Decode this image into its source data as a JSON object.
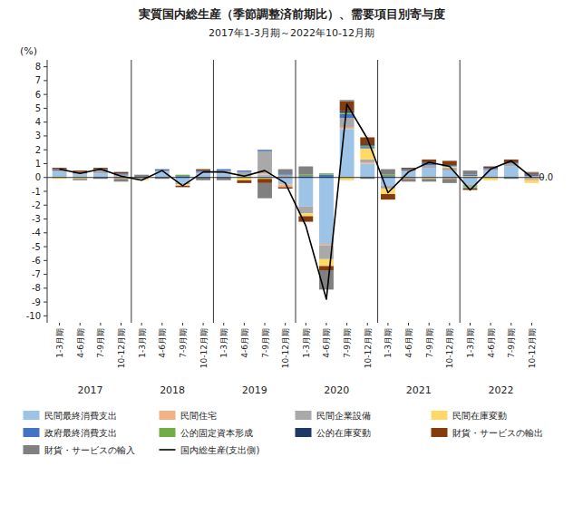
{
  "chart_data": {
    "type": "bar",
    "stacked": true,
    "grid": false,
    "legend": "bottom",
    "title": "実質国内総生産（季節調整済前期比）、需要項目別寄与度",
    "subtitle": "2017年1-3月期～2022年10-12月期",
    "ylabel": "(%)",
    "ylim": [
      -10.5,
      8.5
    ],
    "yticks": [
      -10,
      -9,
      -8,
      -7,
      -6,
      -5,
      -4,
      -3,
      -2,
      -1,
      0,
      1,
      2,
      3,
      4,
      5,
      6,
      7,
      8
    ],
    "categories": [
      "1-3月期",
      "4-6月期",
      "7-9月期",
      "10-12月期",
      "1-3月期",
      "4-6月期",
      "7-9月期",
      "10-12月期",
      "1-3月期",
      "4-6月期",
      "7-9月期",
      "10-12月期",
      "1-3月期",
      "4-6月期",
      "7-9月期",
      "10-12月期",
      "1-3月期",
      "4-6月期",
      "7-9月期",
      "10-12月期",
      "1-3月期",
      "4-6月期",
      "7-9月期",
      "10-12月期"
    ],
    "annotations": [
      {
        "text": "2017",
        "x": 1.5
      },
      {
        "text": "2018",
        "x": 5.5
      },
      {
        "text": "2019",
        "x": 9.5
      },
      {
        "text": "2020",
        "x": 13.5
      },
      {
        "text": "2021",
        "x": 17.5
      },
      {
        "text": "2022",
        "x": 21.5
      }
    ],
    "series": [
      {
        "name": "民間最終消費支出",
        "color": "#9DC3E6",
        "values": [
          0.4,
          0.2,
          0.3,
          0.1,
          -0.1,
          0.4,
          -0.4,
          0.3,
          0.3,
          0.1,
          0.2,
          -0.5,
          -2.1,
          -4.8,
          3.5,
          1.0,
          -0.6,
          0.4,
          0.7,
          0.5,
          -0.5,
          0.5,
          0.8,
          0.1
        ]
      },
      {
        "name": "民間住宅",
        "color": "#F4B183",
        "values": [
          0.0,
          0.0,
          0.0,
          -0.1,
          0.0,
          0.0,
          0.0,
          0.0,
          0.0,
          0.0,
          0.1,
          -0.2,
          0.0,
          -0.1,
          0.1,
          0.1,
          0.0,
          -0.1,
          0.0,
          -0.1,
          0.0,
          0.0,
          0.0,
          -0.1
        ]
      },
      {
        "name": "民間企業設備",
        "color": "#A9A9A9",
        "values": [
          0.1,
          0.1,
          0.2,
          0.1,
          0.0,
          0.1,
          -0.1,
          0.1,
          0.2,
          0.3,
          1.6,
          0.2,
          -0.5,
          -1.0,
          0.7,
          0.2,
          -0.2,
          0.1,
          0.2,
          0.2,
          -0.2,
          0.1,
          0.2,
          -0.1
        ]
      },
      {
        "name": "民間在庫変動",
        "color": "#FFD966",
        "values": [
          -0.1,
          -0.1,
          0.0,
          0.0,
          -0.1,
          0.0,
          -0.1,
          0.0,
          0.0,
          -0.2,
          -0.1,
          0.0,
          -0.2,
          -0.5,
          -0.2,
          0.8,
          -0.4,
          0.0,
          -0.1,
          0.1,
          0.1,
          -0.2,
          0.0,
          -0.2
        ]
      },
      {
        "name": "政府最終消費支出",
        "color": "#4472C4",
        "values": [
          0.1,
          0.1,
          0.1,
          0.1,
          0.0,
          0.1,
          0.1,
          0.1,
          0.1,
          0.1,
          0.1,
          0.1,
          0.1,
          0.2,
          0.3,
          0.1,
          0.1,
          0.1,
          0.2,
          0.1,
          0.1,
          0.1,
          0.1,
          0.1
        ]
      },
      {
        "name": "公的固定資本形成",
        "color": "#70AD47",
        "values": [
          0.0,
          0.0,
          0.0,
          0.0,
          0.0,
          0.0,
          0.1,
          0.0,
          0.0,
          0.0,
          0.0,
          0.0,
          0.1,
          0.1,
          0.1,
          0.1,
          0.1,
          0.0,
          0.0,
          0.0,
          -0.1,
          0.0,
          0.0,
          0.0
        ]
      },
      {
        "name": "公的在庫変動",
        "color": "#203864",
        "values": [
          0.0,
          0.0,
          0.0,
          0.0,
          0.0,
          0.0,
          0.0,
          0.0,
          0.0,
          0.0,
          0.0,
          0.0,
          0.0,
          0.0,
          0.1,
          0.1,
          0.0,
          0.0,
          0.0,
          0.0,
          0.0,
          0.0,
          0.0,
          0.0
        ]
      },
      {
        "name": "財貨・サービスの輸出",
        "color": "#843C0C",
        "values": [
          0.1,
          0.1,
          0.1,
          0.1,
          0.0,
          0.0,
          -0.1,
          0.1,
          0.0,
          -0.2,
          -0.3,
          -0.1,
          -0.4,
          -0.3,
          0.7,
          0.5,
          -0.4,
          0.1,
          0.2,
          0.3,
          -0.1,
          0.1,
          0.2,
          0.1
        ]
      },
      {
        "name": "財貨・サービスの輸入",
        "color": "#808080",
        "values": [
          0.0,
          -0.1,
          -0.1,
          -0.2,
          0.2,
          -0.1,
          0.0,
          -0.2,
          -0.2,
          0.0,
          -1.1,
          0.3,
          0.6,
          -1.4,
          0.1,
          -0.1,
          0.4,
          -0.2,
          -0.2,
          -0.3,
          0.3,
          0.0,
          -0.1,
          0.1
        ]
      },
      {
        "name": "国内総生産(支出側)",
        "type": "line",
        "color": "#000000",
        "values": [
          0.6,
          0.3,
          0.6,
          0.1,
          -0.2,
          0.5,
          -0.6,
          0.4,
          0.4,
          0.1,
          0.5,
          -0.4,
          -3.5,
          -8.8,
          5.3,
          2.8,
          -1.1,
          0.4,
          1.1,
          0.8,
          -0.9,
          0.6,
          1.2,
          0.0
        ],
        "value_labels": [
          null,
          null,
          null,
          null,
          null,
          null,
          null,
          null,
          null,
          null,
          null,
          null,
          null,
          null,
          null,
          null,
          null,
          null,
          null,
          null,
          null,
          null,
          null,
          "0.0"
        ]
      }
    ]
  }
}
